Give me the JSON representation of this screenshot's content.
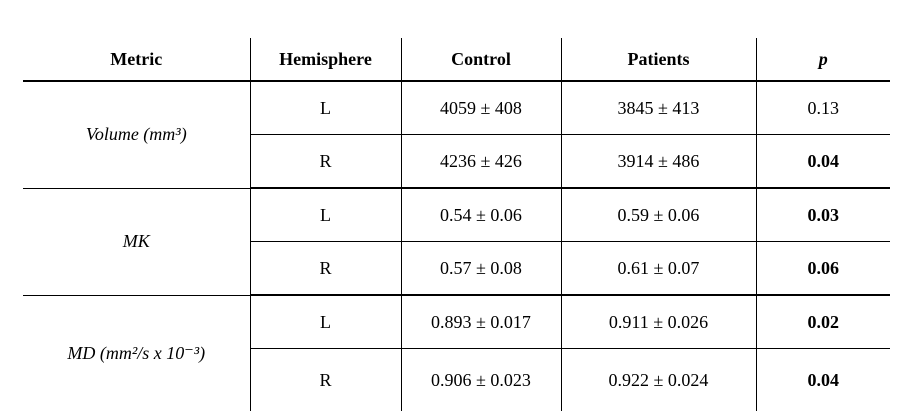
{
  "table": {
    "headers": {
      "metric": "Metric",
      "hemisphere": "Hemisphere",
      "control": "Control",
      "patients": "Patients",
      "p": "p"
    },
    "groups": [
      {
        "metric": "Volume (mm³)",
        "rows": [
          {
            "hemisphere": "L",
            "control": "4059 ± 408",
            "patients": "3845 ± 413",
            "p": "0.13",
            "p_bold": false
          },
          {
            "hemisphere": "R",
            "control": "4236 ± 426",
            "patients": "3914 ± 486",
            "p": "0.04",
            "p_bold": true
          }
        ]
      },
      {
        "metric": "MK",
        "rows": [
          {
            "hemisphere": "L",
            "control": "0.54 ± 0.06",
            "patients": "0.59 ± 0.06",
            "p": "0.03",
            "p_bold": true
          },
          {
            "hemisphere": "R",
            "control": "0.57 ± 0.08",
            "patients": "0.61 ± 0.07",
            "p": "0.06",
            "p_bold": true
          }
        ]
      },
      {
        "metric": "MD (mm²/s x 10⁻³)",
        "rows": [
          {
            "hemisphere": "L",
            "control": "0.893 ± 0.017",
            "patients": "0.911 ± 0.026",
            "p": "0.02",
            "p_bold": true
          },
          {
            "hemisphere": "R",
            "control": "0.906 ± 0.023",
            "patients": "0.922 ± 0.024",
            "p": "0.04",
            "p_bold": true
          }
        ]
      }
    ],
    "line_color": "#000000",
    "background_color": "#ffffff"
  }
}
